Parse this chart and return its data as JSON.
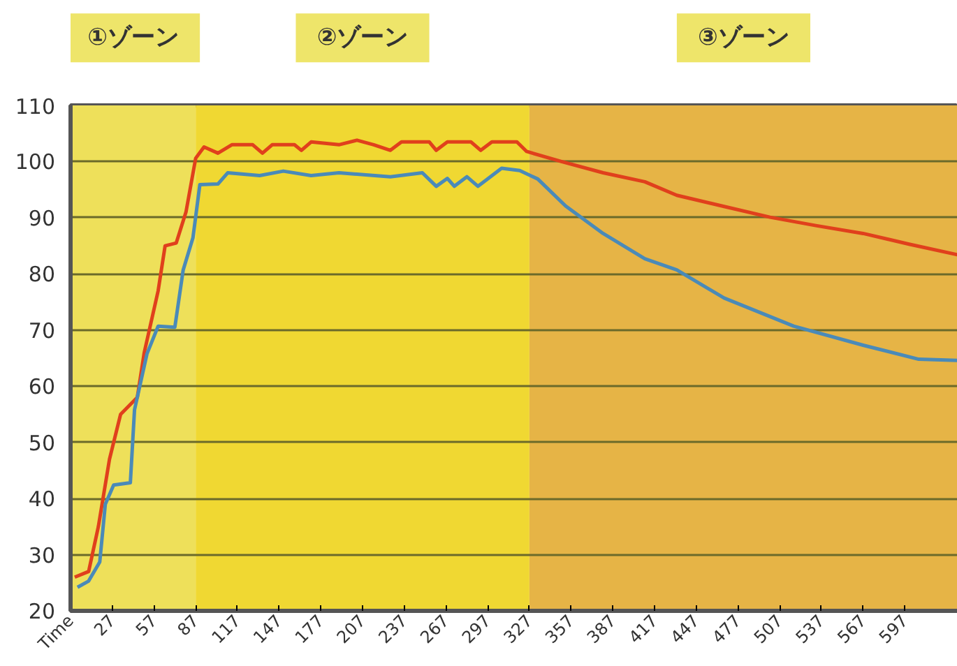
{
  "chart_data": {
    "type": "line",
    "xlim": [
      -3,
      635
    ],
    "ylim": [
      20,
      110
    ],
    "xticks": [
      {
        "value": -3,
        "label": "Time"
      },
      27,
      57,
      87,
      117,
      147,
      177,
      207,
      237,
      267,
      297,
      327,
      357,
      387,
      417,
      447,
      477,
      507,
      537,
      567,
      597
    ],
    "yticks": [
      20,
      30,
      40,
      50,
      60,
      70,
      80,
      90,
      100,
      110
    ],
    "grid": "y",
    "line_style": "solid",
    "marker": "none",
    "bands": [
      {
        "axis": "x",
        "from": -3,
        "to": 87,
        "label": "①ゾーン",
        "color": "#eee05a"
      },
      {
        "axis": "x",
        "from": 87,
        "to": 327,
        "label": "②ゾーン",
        "color": "#f0d832"
      },
      {
        "axis": "x",
        "from": 327,
        "to": 635,
        "label": "③ゾーン",
        "color": "#e6b446"
      }
    ],
    "series": [
      {
        "color": "#e0401c",
        "x": [
          0,
          10,
          17,
          25,
          33,
          45,
          50,
          60,
          65,
          73,
          80,
          87,
          93,
          103,
          113,
          128,
          135,
          142,
          158,
          163,
          170,
          190,
          203,
          215,
          227,
          235,
          255,
          260,
          268,
          285,
          292,
          300,
          318,
          325,
          350,
          380,
          410,
          433,
          467,
          500,
          533,
          567,
          600,
          635
        ],
        "values": [
          26,
          27,
          35,
          47,
          55,
          58,
          66,
          77,
          85,
          85.5,
          91,
          100.6,
          102.6,
          101.5,
          103,
          103,
          101.5,
          103,
          103,
          102,
          103.5,
          103,
          103.8,
          103,
          102,
          103.5,
          103.5,
          102,
          103.5,
          103.5,
          102,
          103.5,
          103.5,
          101.8,
          100,
          98,
          96.4,
          94,
          92,
          90.1,
          88.6,
          87.2,
          85.3,
          83.4
        ]
      },
      {
        "color": "#4a8ab8",
        "x": [
          2,
          10,
          18,
          22,
          28,
          40,
          43,
          52,
          60,
          72,
          78,
          85,
          90,
          103,
          110,
          133,
          150,
          170,
          190,
          227,
          250,
          260,
          268,
          273,
          282,
          290,
          307,
          320,
          333,
          353,
          380,
          410,
          433,
          467,
          517,
          567,
          607,
          635
        ],
        "values": [
          24.2,
          25.3,
          28.7,
          39,
          42.4,
          42.8,
          55.8,
          65.8,
          70.7,
          70.5,
          80.7,
          86.4,
          95.9,
          96,
          98,
          97.5,
          98.3,
          97.5,
          98,
          97.3,
          98,
          95.6,
          97,
          95.6,
          97.3,
          95.6,
          98.8,
          98.4,
          96.9,
          92.1,
          87.2,
          82.7,
          80.7,
          75.7,
          70.7,
          67.3,
          64.8,
          64.6
        ]
      }
    ]
  }
}
